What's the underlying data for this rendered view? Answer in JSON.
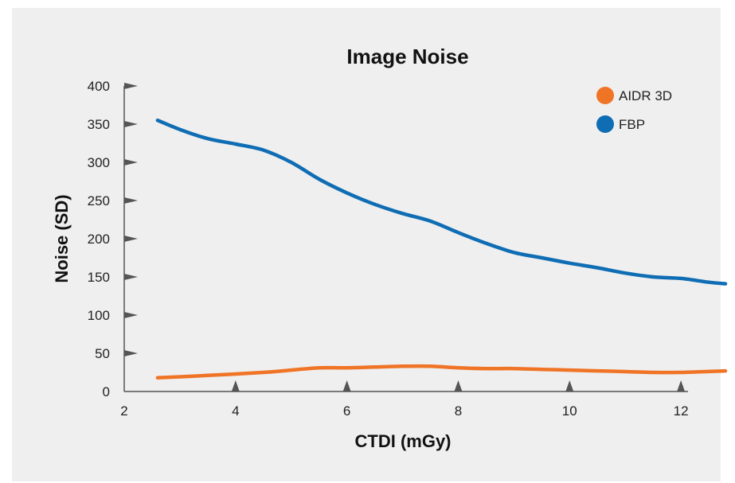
{
  "chart_data": {
    "type": "line",
    "title": "Image Noise",
    "xlabel": "CTDI (mGy)",
    "ylabel": "Noise (SD)",
    "xlim": [
      2,
      13
    ],
    "ylim": [
      0,
      400
    ],
    "x_ticks": [
      2,
      4,
      6,
      8,
      10,
      12
    ],
    "y_ticks": [
      0,
      50,
      100,
      150,
      200,
      250,
      300,
      350,
      400
    ],
    "legend_position": "top-right",
    "grid": false,
    "series": [
      {
        "name": "AIDR 3D",
        "color": "#f07426",
        "x": [
          2.6,
          3.5,
          4.5,
          5.0,
          5.5,
          6.0,
          6.5,
          7.0,
          7.5,
          8.0,
          8.5,
          9.0,
          9.5,
          10.0,
          10.5,
          11.0,
          11.5,
          12.0,
          12.8
        ],
        "y": [
          18,
          21,
          25,
          28,
          31,
          31,
          32,
          33,
          33,
          31,
          30,
          30,
          29,
          28,
          27,
          26,
          25,
          25,
          27
        ]
      },
      {
        "name": "FBP",
        "color": "#0f6db4",
        "x": [
          2.6,
          3.0,
          3.5,
          4.0,
          4.5,
          5.0,
          5.5,
          6.0,
          6.5,
          7.0,
          7.5,
          8.0,
          8.5,
          9.0,
          9.5,
          10.0,
          10.5,
          11.0,
          11.5,
          12.0,
          12.5,
          12.8
        ],
        "y": [
          355,
          343,
          331,
          324,
          316,
          300,
          278,
          260,
          245,
          233,
          223,
          208,
          194,
          182,
          175,
          168,
          162,
          155,
          150,
          148,
          143,
          141
        ]
      }
    ]
  }
}
